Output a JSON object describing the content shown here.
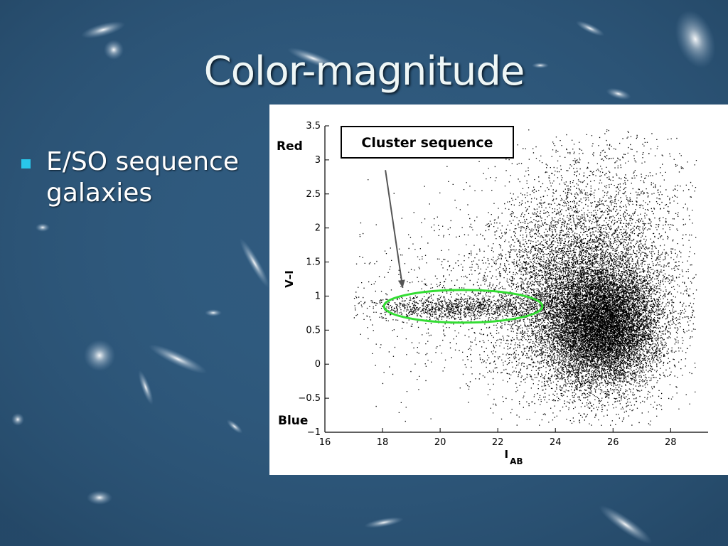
{
  "slide": {
    "title": "Color-magnitude",
    "bullets": [
      {
        "text_line1": "E/SO sequence",
        "text_line2": "galaxies"
      }
    ],
    "colors": {
      "background": "#2f5a7e",
      "bullet": "#29c6ea",
      "ellipse": "#33dd33",
      "arrow": "#555555"
    }
  },
  "chart_data": {
    "type": "scatter",
    "xlim": [
      16,
      29.3
    ],
    "ylim": [
      -1,
      3.5
    ],
    "xticks": [
      16,
      18,
      20,
      22,
      24,
      26,
      28
    ],
    "yticks": [
      -1,
      -0.5,
      0,
      0.5,
      1,
      1.5,
      2,
      2.5,
      3,
      3.5
    ],
    "xlabel": "I",
    "xlabel_sub": "AB",
    "ylabel": "V–I",
    "ytick_labels": [
      "−1",
      "−0.5",
      "0",
      "0.5",
      "1",
      "1.5",
      "2",
      "2.5",
      "3",
      "3.5"
    ],
    "annotations": {
      "red": "Red",
      "blue": "Blue",
      "box": "Cluster sequence"
    },
    "cluster_sequence": {
      "center": [
        20.8,
        0.85
      ],
      "x_halfwidth": 2.75,
      "y_halfwidth": 0.24
    },
    "arrow": {
      "from": [
        18.1,
        2.85
      ],
      "to": [
        18.7,
        1.12
      ]
    },
    "populations": [
      {
        "name": "",
        "n": 9000,
        "mean": [
          25.7,
          0.55
        ],
        "sd": [
          0.95,
          0.42
        ]
      },
      {
        "name": "",
        "n": 6500,
        "mean": [
          24.8,
          0.9
        ],
        "sd": [
          1.5,
          0.7
        ]
      },
      {
        "name": "",
        "n": 2600,
        "mean": [
          25.5,
          1.7
        ],
        "sd": [
          1.7,
          0.9
        ]
      },
      {
        "name": "",
        "n": 1100,
        "mean": [
          20.5,
          0.83
        ],
        "sd": [
          1.6,
          0.09
        ]
      },
      {
        "name": "",
        "n": 700,
        "mean": [
          20.8,
          0.95
        ],
        "sd": [
          2.2,
          0.65
        ]
      }
    ]
  }
}
